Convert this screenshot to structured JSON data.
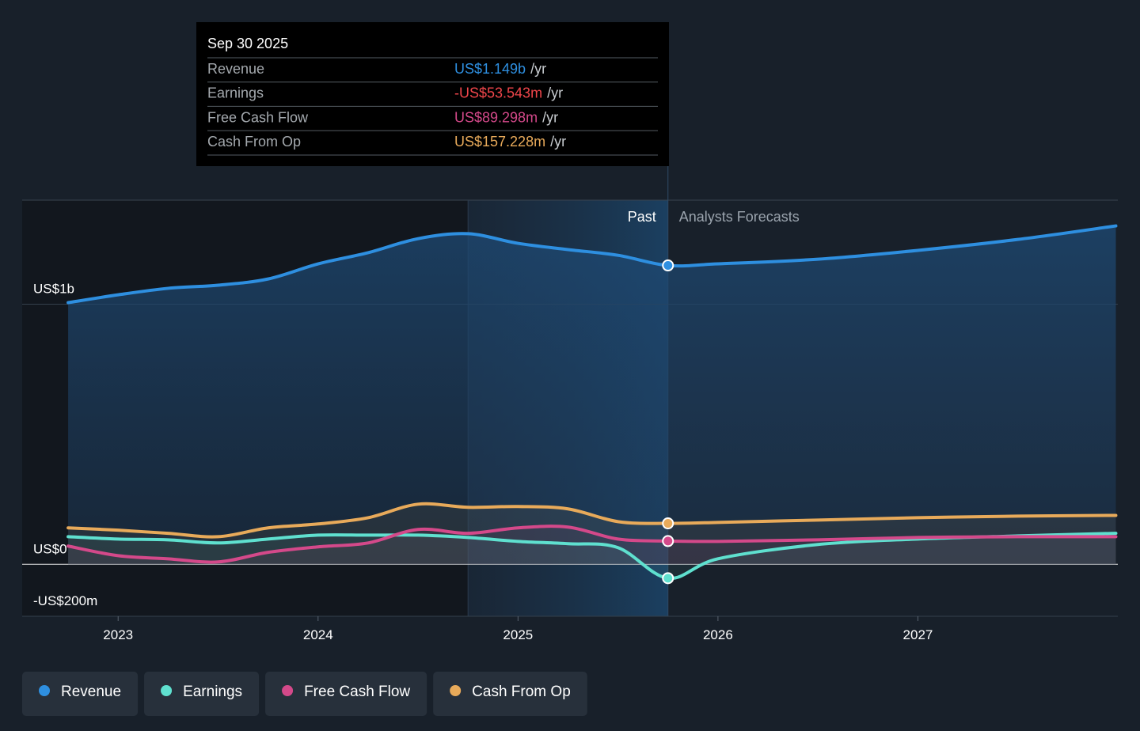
{
  "chart_data": {
    "type": "line",
    "x": [
      2022.75,
      2023.0,
      2023.25,
      2023.5,
      2023.75,
      2024.0,
      2024.25,
      2024.5,
      2024.75,
      2025.0,
      2025.25,
      2025.5,
      2025.75,
      2026.0,
      2026.5,
      2027.0,
      2027.5,
      2027.99
    ],
    "xlim": [
      2022.52,
      2028.0
    ],
    "xticks": [
      2023,
      2024,
      2025,
      2026,
      2027
    ],
    "ylim": [
      -200,
      1400
    ],
    "yticks": [
      {
        "value": -200,
        "label": "-US$200m"
      },
      {
        "value": 0,
        "label": "US$0"
      },
      {
        "value": 1000,
        "label": "US$1b"
      }
    ],
    "past_label": "Past",
    "forecast_label": "Analysts Forecasts",
    "series": [
      {
        "name": "Revenue",
        "color": "#2e8fe0",
        "values": [
          1006,
          1036,
          1061,
          1073,
          1097,
          1155,
          1198,
          1252,
          1271,
          1234,
          1210,
          1188,
          1149,
          1155,
          1173,
          1207,
          1249,
          1301
        ]
      },
      {
        "name": "Earnings",
        "color": "#5fe0cf",
        "values": [
          106,
          97,
          94,
          82,
          97,
          112,
          112,
          112,
          103,
          88,
          79,
          64,
          -53.543,
          21,
          76,
          97,
          109,
          119
        ]
      },
      {
        "name": "Free Cash Flow",
        "color": "#d4498a",
        "values": [
          70,
          33,
          21,
          9,
          46,
          67,
          82,
          134,
          119,
          140,
          143,
          97,
          89.298,
          88,
          94,
          103,
          106,
          106
        ]
      },
      {
        "name": "Cash From Op",
        "color": "#e8aa5a",
        "values": [
          140,
          131,
          119,
          106,
          140,
          155,
          179,
          231,
          219,
          222,
          213,
          164,
          157.228,
          161,
          170,
          179,
          185,
          188
        ]
      }
    ],
    "tooltip": {
      "title": "Sep 30 2025",
      "rows": [
        {
          "label": "Revenue",
          "value": "US$1.149b",
          "unit": "/yr"
        },
        {
          "label": "Earnings",
          "value": "-US$53.543m",
          "unit": "/yr"
        },
        {
          "label": "Free Cash Flow",
          "value": "US$89.298m",
          "unit": "/yr"
        },
        {
          "label": "Cash From Op",
          "value": "US$157.228m",
          "unit": "/yr"
        }
      ]
    }
  }
}
